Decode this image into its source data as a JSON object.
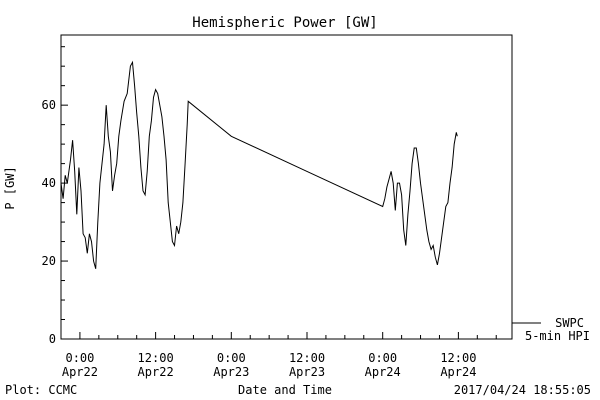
{
  "chart_data": {
    "type": "line",
    "title": "Hemispheric Power [GW]",
    "xlabel": "Date and Time",
    "ylabel": "P [GW]",
    "xlim": [
      "2017-04-21T21:00",
      "2017-04-24T20:30"
    ],
    "ylim": [
      0,
      78
    ],
    "yticks": [
      0,
      20,
      40,
      60
    ],
    "yticks_minor_step": 5,
    "xticks": [
      {
        "t": "2017-04-22T00:00",
        "time": "0:00",
        "date": "Apr22"
      },
      {
        "t": "2017-04-22T12:00",
        "time": "12:00",
        "date": "Apr22"
      },
      {
        "t": "2017-04-23T00:00",
        "time": "0:00",
        "date": "Apr23"
      },
      {
        "t": "2017-04-23T12:00",
        "time": "12:00",
        "date": "Apr23"
      },
      {
        "t": "2017-04-24T00:00",
        "time": "0:00",
        "date": "Apr24"
      },
      {
        "t": "2017-04-24T12:00",
        "time": "12:00",
        "date": "Apr24"
      }
    ],
    "xticks_minor_hours": 3,
    "grid": false,
    "series": [
      {
        "name": "SWPC",
        "name2": "5-min HPI",
        "color": "#000000",
        "points": [
          [
            "2017-04-21T21:00",
            40
          ],
          [
            "2017-04-21T21:20",
            36
          ],
          [
            "2017-04-21T21:40",
            42
          ],
          [
            "2017-04-21T22:00",
            40
          ],
          [
            "2017-04-21T22:30",
            46
          ],
          [
            "2017-04-21T22:50",
            51
          ],
          [
            "2017-04-21T23:10",
            43
          ],
          [
            "2017-04-21T23:30",
            32
          ],
          [
            "2017-04-21T23:50",
            44
          ],
          [
            "2017-04-22T00:10",
            38
          ],
          [
            "2017-04-22T00:30",
            27
          ],
          [
            "2017-04-22T00:50",
            26
          ],
          [
            "2017-04-22T01:10",
            22
          ],
          [
            "2017-04-22T01:30",
            27
          ],
          [
            "2017-04-22T01:50",
            25
          ],
          [
            "2017-04-22T02:10",
            20
          ],
          [
            "2017-04-22T02:30",
            18
          ],
          [
            "2017-04-22T02:50",
            30
          ],
          [
            "2017-04-22T03:10",
            40
          ],
          [
            "2017-04-22T03:30",
            45
          ],
          [
            "2017-04-22T03:50",
            50
          ],
          [
            "2017-04-22T04:10",
            60
          ],
          [
            "2017-04-22T04:30",
            52
          ],
          [
            "2017-04-22T04:50",
            48
          ],
          [
            "2017-04-22T05:10",
            38
          ],
          [
            "2017-04-22T05:30",
            42
          ],
          [
            "2017-04-22T05:50",
            45
          ],
          [
            "2017-04-22T06:10",
            52
          ],
          [
            "2017-04-22T06:30",
            56
          ],
          [
            "2017-04-22T07:00",
            61
          ],
          [
            "2017-04-22T07:30",
            63
          ],
          [
            "2017-04-22T08:00",
            70
          ],
          [
            "2017-04-22T08:20",
            71
          ],
          [
            "2017-04-22T08:40",
            65
          ],
          [
            "2017-04-22T09:00",
            58
          ],
          [
            "2017-04-22T09:20",
            52
          ],
          [
            "2017-04-22T09:40",
            44
          ],
          [
            "2017-04-22T10:00",
            38
          ],
          [
            "2017-04-22T10:20",
            37
          ],
          [
            "2017-04-22T10:40",
            43
          ],
          [
            "2017-04-22T11:00",
            52
          ],
          [
            "2017-04-22T11:20",
            56
          ],
          [
            "2017-04-22T11:40",
            62
          ],
          [
            "2017-04-22T12:00",
            64
          ],
          [
            "2017-04-22T12:20",
            63
          ],
          [
            "2017-04-22T12:40",
            60
          ],
          [
            "2017-04-22T13:00",
            57
          ],
          [
            "2017-04-22T13:20",
            52
          ],
          [
            "2017-04-22T13:40",
            46
          ],
          [
            "2017-04-22T14:00",
            35
          ],
          [
            "2017-04-22T14:20",
            30
          ],
          [
            "2017-04-22T14:40",
            25
          ],
          [
            "2017-04-22T15:00",
            24
          ],
          [
            "2017-04-22T15:20",
            29
          ],
          [
            "2017-04-22T15:40",
            27
          ],
          [
            "2017-04-22T16:00",
            30
          ],
          [
            "2017-04-22T16:20",
            35
          ],
          [
            "2017-04-22T16:40",
            45
          ],
          [
            "2017-04-22T17:00",
            55
          ],
          [
            "2017-04-22T17:10",
            61
          ],
          [
            "2017-04-23T00:00",
            52
          ],
          [
            "2017-04-23T12:00",
            43
          ],
          [
            "2017-04-24T00:00",
            34
          ],
          [
            "2017-04-24T00:20",
            36
          ],
          [
            "2017-04-24T00:40",
            39
          ],
          [
            "2017-04-24T01:00",
            41
          ],
          [
            "2017-04-24T01:20",
            43
          ],
          [
            "2017-04-24T01:40",
            40
          ],
          [
            "2017-04-24T02:00",
            33
          ],
          [
            "2017-04-24T02:20",
            40
          ],
          [
            "2017-04-24T02:40",
            40
          ],
          [
            "2017-04-24T03:00",
            37
          ],
          [
            "2017-04-24T03:20",
            28
          ],
          [
            "2017-04-24T03:40",
            24
          ],
          [
            "2017-04-24T04:00",
            32
          ],
          [
            "2017-04-24T04:20",
            38
          ],
          [
            "2017-04-24T04:40",
            45
          ],
          [
            "2017-04-24T05:00",
            49
          ],
          [
            "2017-04-24T05:20",
            49
          ],
          [
            "2017-04-24T05:40",
            45
          ],
          [
            "2017-04-24T06:00",
            40
          ],
          [
            "2017-04-24T06:20",
            36
          ],
          [
            "2017-04-24T06:40",
            32
          ],
          [
            "2017-04-24T07:00",
            28
          ],
          [
            "2017-04-24T07:20",
            25
          ],
          [
            "2017-04-24T07:40",
            23
          ],
          [
            "2017-04-24T08:00",
            24
          ],
          [
            "2017-04-24T08:20",
            21
          ],
          [
            "2017-04-24T08:40",
            19
          ],
          [
            "2017-04-24T09:00",
            22
          ],
          [
            "2017-04-24T09:20",
            26
          ],
          [
            "2017-04-24T09:40",
            30
          ],
          [
            "2017-04-24T10:00",
            34
          ],
          [
            "2017-04-24T10:20",
            35
          ],
          [
            "2017-04-24T10:40",
            40
          ],
          [
            "2017-04-24T11:00",
            44
          ],
          [
            "2017-04-24T11:20",
            50
          ],
          [
            "2017-04-24T11:40",
            53
          ],
          [
            "2017-04-24T11:50",
            52
          ]
        ]
      }
    ]
  },
  "footer": {
    "plot_label": "Plot: CCMC",
    "timestamp": "2017/04/24 18:55:05"
  }
}
